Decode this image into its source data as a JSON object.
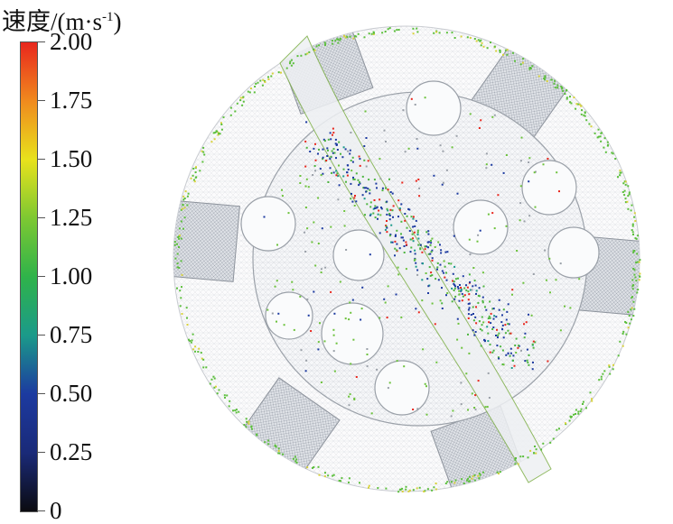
{
  "legend": {
    "title_main": "速度/(m·s",
    "title_sup": "-1",
    "title_close": ")",
    "ticks": [
      "2.00",
      "1.75",
      "1.50",
      "1.25",
      "1.00",
      "0.75",
      "0.50",
      "0.25",
      "0"
    ],
    "colors": [
      "#e8261d",
      "#f08a1e",
      "#e8e21c",
      "#7dc832",
      "#2fb34a",
      "#1b9a8a",
      "#1c3aa0",
      "#1a2a78",
      "#0b0b10"
    ]
  },
  "range": [
    0,
    2.0
  ]
}
